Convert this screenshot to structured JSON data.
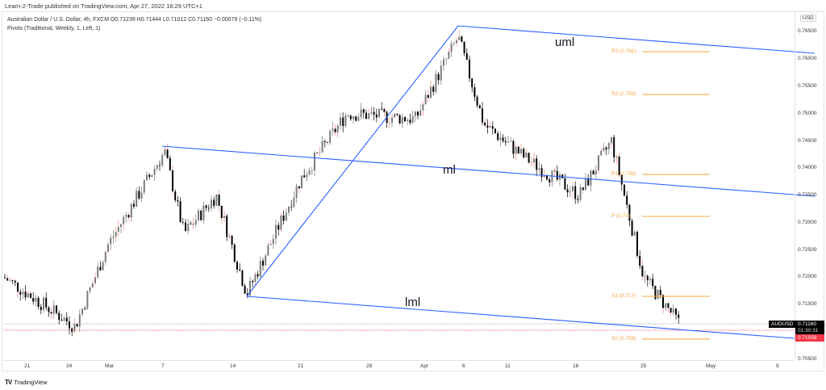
{
  "publisher_line": "Learn-2-Trade published on TradingView.com, Apr 27, 2022 16:29 UTC+1",
  "legend": {
    "symbol_line": "Australian Dollar / U.S. Dollar, 4h, FXCM  O0.71239  H0.71444  L0.71012  C0.71160  −0.00079 (−0.11%)",
    "indicator_line": "Pivots (Traditional, Weekly, 1, Left, 1)"
  },
  "price_axis": {
    "currency": "USD",
    "ticks": [
      "0.76500",
      "0.76000",
      "0.75500",
      "0.75000",
      "0.74500",
      "0.74000",
      "0.73500",
      "0.73000",
      "0.72500",
      "0.72000",
      "0.71500",
      "0.70500"
    ]
  },
  "time_axis": {
    "ticks": [
      "21",
      "24",
      "Mar",
      "7",
      "14",
      "21",
      "28",
      "Apr",
      "6",
      "11",
      "18",
      "25",
      "May",
      "9"
    ]
  },
  "last_price": {
    "symbol": "AUDUSD",
    "price": "0.71160",
    "countdown": "01:30:31",
    "low_marker": "0.71059"
  },
  "brand": {
    "logo": "TV",
    "name": "TradingView"
  },
  "annotations": {
    "upper_line_label": "uml",
    "median_line_label": "ml",
    "lower_line_label": "lml"
  },
  "pivots": [
    {
      "label": "R3 (0.761)",
      "value": 0.761
    },
    {
      "label": "R2 (0.754)",
      "value": 0.754
    },
    {
      "label": "R1 (0.739)",
      "value": 0.739
    },
    {
      "label": "P (0.73)",
      "value": 0.731
    },
    {
      "label": "S1 (0.717)",
      "value": 0.717
    },
    {
      "label": "S2 (0.709)",
      "value": 0.709
    }
  ],
  "colors": {
    "line_blue": "#2962ff",
    "pivot_orange": "#f7a541",
    "candle_up": "#7b7b7b",
    "candle_down": "#000000",
    "wick_red": "#f28b82",
    "last_price_bg": "#000000",
    "low_marker_bg": "#f23645"
  },
  "chart_data": {
    "type": "candlestick",
    "title": "Australian Dollar / U.S. Dollar, 4h, FXCM",
    "symbol": "AUDUSD",
    "timeframe": "4h",
    "ohlc_last": {
      "open": 0.71239,
      "high": 0.71444,
      "low": 0.71012,
      "close": 0.7116,
      "change": -0.00079,
      "change_pct": -0.11
    },
    "xlabel": "",
    "ylabel": "USD",
    "ylim": [
      0.7045,
      0.7665
    ],
    "x_ticks": [
      "21",
      "24",
      "Mar",
      "7",
      "14",
      "21",
      "28",
      "Apr",
      "6",
      "11",
      "18",
      "25",
      "May",
      "9"
    ],
    "y_ticks": [
      0.765,
      0.76,
      0.755,
      0.75,
      0.745,
      0.74,
      0.735,
      0.73,
      0.725,
      0.72,
      0.715,
      0.705
    ],
    "approx_path": [
      {
        "date": "Feb 18",
        "price": 0.72
      },
      {
        "date": "Feb 24",
        "price": 0.711
      },
      {
        "date": "Mar 1",
        "price": 0.726
      },
      {
        "date": "Mar 7",
        "price": 0.743
      },
      {
        "date": "Mar 10",
        "price": 0.728
      },
      {
        "date": "Mar 11",
        "price": 0.735
      },
      {
        "date": "Mar 15",
        "price": 0.717
      },
      {
        "date": "Mar 21",
        "price": 0.738
      },
      {
        "date": "Mar 25",
        "price": 0.75
      },
      {
        "date": "Apr 1",
        "price": 0.749
      },
      {
        "date": "Apr 5",
        "price": 0.764
      },
      {
        "date": "Apr 8",
        "price": 0.748
      },
      {
        "date": "Apr 14",
        "price": 0.742
      },
      {
        "date": "Apr 19",
        "price": 0.735
      },
      {
        "date": "Apr 21",
        "price": 0.745
      },
      {
        "date": "Apr 25",
        "price": 0.72
      },
      {
        "date": "Apr 27",
        "price": 0.7116
      }
    ],
    "pitchfork": {
      "uml": {
        "start": {
          "date": "Apr 5",
          "price": 0.766
        },
        "end_price_right_edge": 0.761,
        "label": "uml"
      },
      "ml": {
        "start": {
          "date": "Mar 7",
          "price": 0.7443
        },
        "end_price_right_edge": 0.735,
        "label": "ml"
      },
      "lml": {
        "start": {
          "date": "Mar 15",
          "price": 0.7168
        },
        "end_price_right_edge": 0.7087,
        "label": "lml"
      }
    },
    "horizontal_levels": {
      "last_close": 0.7116,
      "low_marker": 0.71059
    },
    "legend": "Pivots (Traditional, Weekly, 1, Left, 1)",
    "grid": false
  }
}
